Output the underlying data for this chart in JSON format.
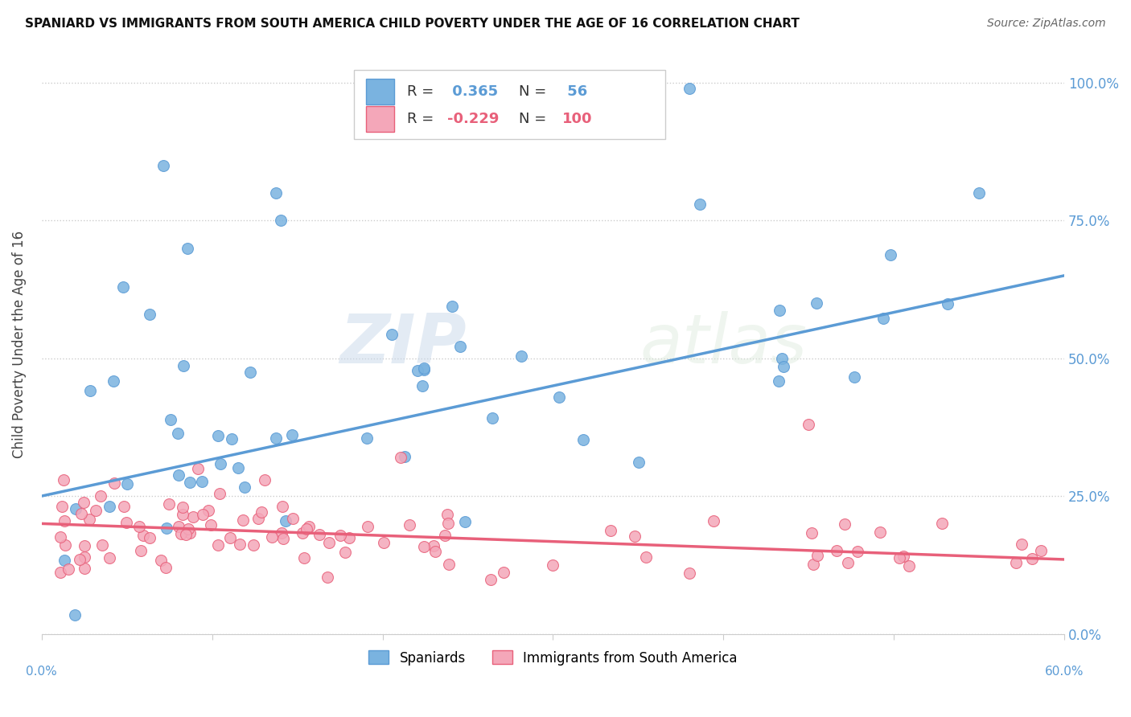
{
  "title": "SPANIARD VS IMMIGRANTS FROM SOUTH AMERICA CHILD POVERTY UNDER THE AGE OF 16 CORRELATION CHART",
  "source": "Source: ZipAtlas.com",
  "ylabel": "Child Poverty Under the Age of 16",
  "ytick_labels": [
    "0.0%",
    "25.0%",
    "50.0%",
    "75.0%",
    "100.0%"
  ],
  "ytick_values": [
    0.0,
    0.25,
    0.5,
    0.75,
    1.0
  ],
  "xlim": [
    0.0,
    0.6
  ],
  "ylim": [
    0.0,
    1.05
  ],
  "legend_label1": "Spaniards",
  "legend_label2": "Immigrants from South America",
  "R1": 0.365,
  "N1": 56,
  "R2": -0.229,
  "N2": 100,
  "color_spaniard": "#7ab3e0",
  "color_immigrant": "#f4a7b9",
  "color_line1": "#5b9bd5",
  "color_line2": "#e8607a",
  "background_color": "#ffffff",
  "watermark_zip": "ZIP",
  "watermark_atlas": "atlas"
}
